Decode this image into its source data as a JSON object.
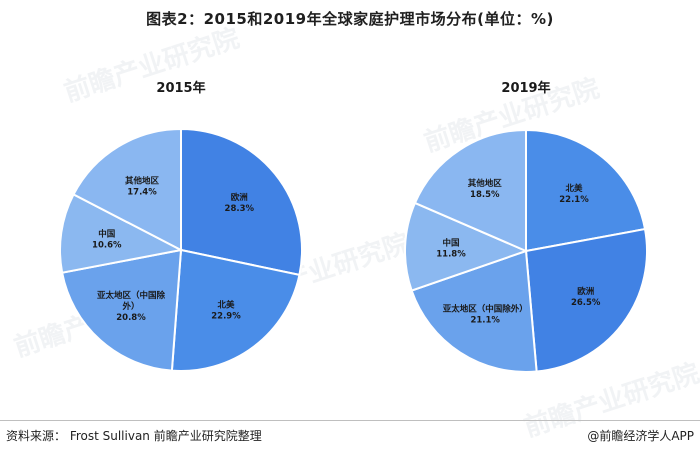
{
  "title": "图表2：2015和2019年全球家庭护理市场分布(单位：%)",
  "source": "资料来源： Frost Sullivan 前瞻产业研究院整理",
  "brand": "@前瞻经济学人APP",
  "watermark": "前瞻产业研究院",
  "colors": {
    "北美": "#4a8de8",
    "欧洲": "#4182e4",
    "亚太地区（中国除外）": "#6aa2ec",
    "中国": "#8bb8f0",
    "其他地区": "#8ab7f1"
  },
  "chart_data": [
    {
      "type": "pie",
      "title": "2015年",
      "unit": "%",
      "slices": [
        {
          "name": "欧洲",
          "value": 28.3,
          "label": "28.3%"
        },
        {
          "name": "北美",
          "value": 22.9,
          "label": "22.9%"
        },
        {
          "name": "亚太地区（中国除外）",
          "label_lines": [
            "亚太地区（中国除",
            "外）"
          ],
          "value": 20.8,
          "label": "20.8%"
        },
        {
          "name": "中国",
          "value": 10.6,
          "label": "10.6%"
        },
        {
          "name": "其他地区",
          "value": 17.4,
          "label": "17.4%"
        }
      ]
    },
    {
      "type": "pie",
      "title": "2019年",
      "unit": "%",
      "slices": [
        {
          "name": "北美",
          "value": 22.1,
          "label": "22.1%"
        },
        {
          "name": "欧洲",
          "value": 26.5,
          "label": "26.5%"
        },
        {
          "name": "亚太地区（中国除外）",
          "label_lines": [
            "亚太地区（中国除外）"
          ],
          "value": 21.1,
          "label": "21.1%"
        },
        {
          "name": "中国",
          "value": 11.8,
          "label": "11.8%"
        },
        {
          "name": "其他地区",
          "value": 18.5,
          "label": "18.5%"
        }
      ]
    }
  ]
}
